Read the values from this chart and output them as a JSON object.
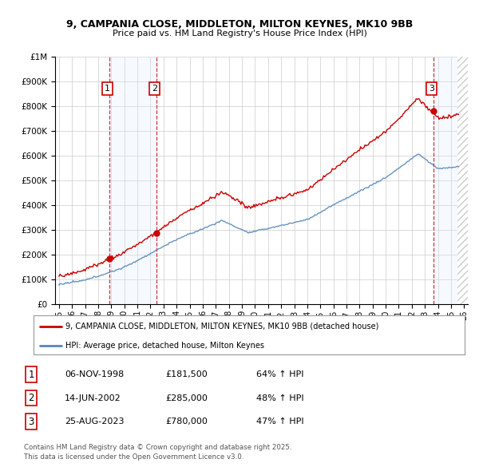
{
  "title_line1": "9, CAMPANIA CLOSE, MIDDLETON, MILTON KEYNES, MK10 9BB",
  "title_line2": "Price paid vs. HM Land Registry's House Price Index (HPI)",
  "ytick_values": [
    0,
    100000,
    200000,
    300000,
    400000,
    500000,
    600000,
    700000,
    800000,
    900000,
    1000000
  ],
  "xlim": [
    1994.7,
    2026.3
  ],
  "ylim": [
    0,
    1000000
  ],
  "sale_dates": [
    1998.85,
    2002.45,
    2023.65
  ],
  "sale_prices": [
    181500,
    285000,
    780000
  ],
  "sale_labels": [
    "1",
    "2",
    "3"
  ],
  "legend_line1": "9, CAMPANIA CLOSE, MIDDLETON, MILTON KEYNES, MK10 9BB (detached house)",
  "legend_line2": "HPI: Average price, detached house, Milton Keynes",
  "table_rows": [
    [
      "1",
      "06-NOV-1998",
      "£181,500",
      "64% ↑ HPI"
    ],
    [
      "2",
      "14-JUN-2002",
      "£285,000",
      "48% ↑ HPI"
    ],
    [
      "3",
      "25-AUG-2023",
      "£780,000",
      "47% ↑ HPI"
    ]
  ],
  "footer": "Contains HM Land Registry data © Crown copyright and database right 2025.\nThis data is licensed under the Open Government Licence v3.0.",
  "red_color": "#cc0000",
  "blue_color": "#5588bb",
  "shade_color": "#ddeeff",
  "grid_color": "#cccccc",
  "bg_color": "#ffffff"
}
